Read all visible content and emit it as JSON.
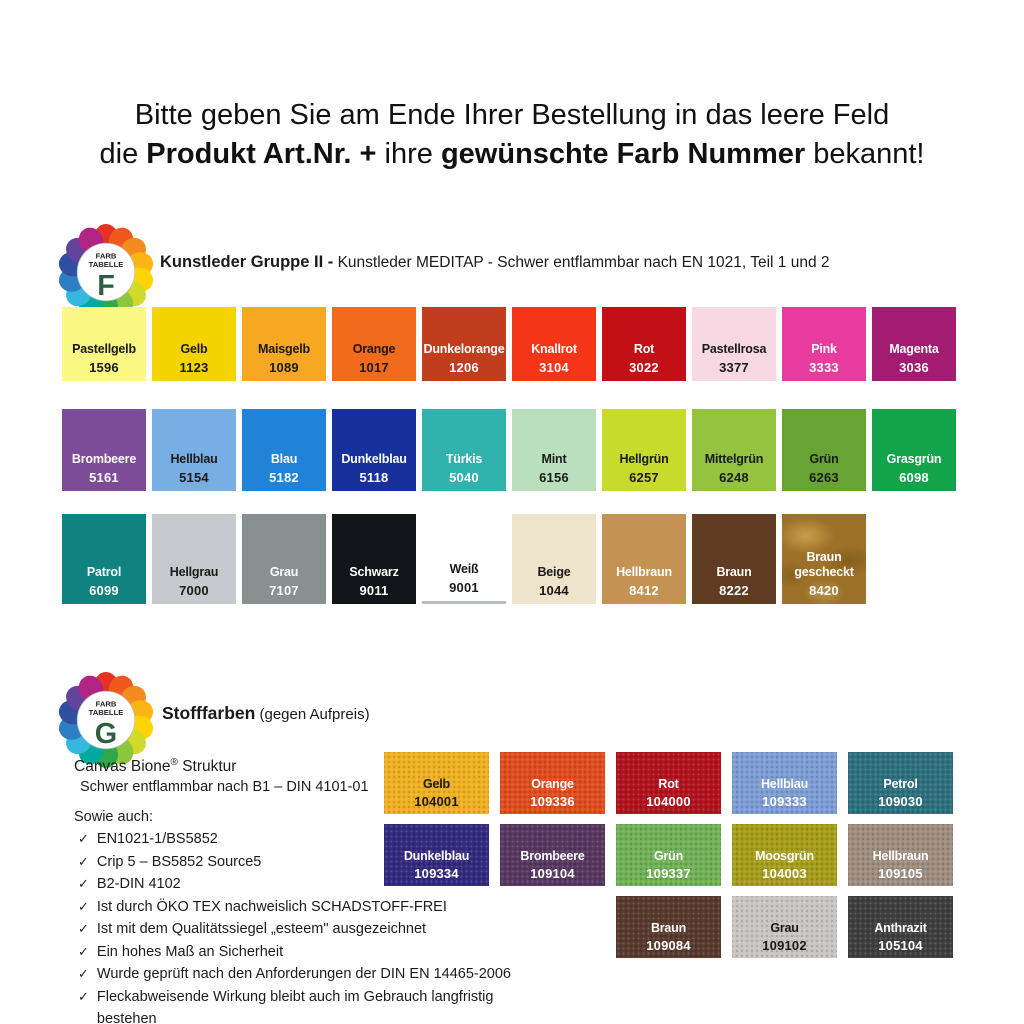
{
  "header": {
    "line1": "Bitte geben Sie am Ende Ihrer Bestellung in das leere Feld",
    "line2_prefix": "die ",
    "line2_bold1": "Produkt Art.Nr. +",
    "line2_mid": " ihre ",
    "line2_bold2": "gewünschte Farb Nummer",
    "line2_suffix": " bekannt!"
  },
  "logo_petal_colors": [
    "#e63223",
    "#f0581f",
    "#f58b1f",
    "#fbb616",
    "#ffd400",
    "#cfdb28",
    "#8cc63e",
    "#2fa84b",
    "#00a99d",
    "#35b8e0",
    "#2e7ec6",
    "#2f4fa2",
    "#63439b",
    "#b02483"
  ],
  "logo_letter_color": "#2d5f3e",
  "section_f": {
    "logo": {
      "line1": "FARB",
      "line2": "TABELLE",
      "letter": "F"
    },
    "title_bold": "Kunstleder Gruppe II -",
    "title_rest": " Kunstleder MEDITAP - Schwer entflammbar nach EN 1021, Teil 1 und 2",
    "rows": [
      {
        "cells": [
          {
            "name": "Pastellgelb",
            "code": "1596",
            "bg": "#faf782",
            "fg": "#1a1a1a"
          },
          {
            "name": "Gelb",
            "code": "1123",
            "bg": "#f4d400",
            "fg": "#1a1a1a"
          },
          {
            "name": "Maisgelb",
            "code": "1089",
            "bg": "#f7a823",
            "fg": "#1a1a1a"
          },
          {
            "name": "Orange",
            "code": "1017",
            "bg": "#f26a1b",
            "fg": "#1a1a1a"
          },
          {
            "name": "Dunkelorange",
            "code": "1206",
            "bg": "#c23c1e",
            "fg": "#ffffff"
          },
          {
            "name": "Knallrot",
            "code": "3104",
            "bg": "#f53517",
            "fg": "#ffffff"
          },
          {
            "name": "Rot",
            "code": "3022",
            "bg": "#c31017",
            "fg": "#ffffff"
          },
          {
            "name": "Pastellrosa",
            "code": "3377",
            "bg": "#f8d8e2",
            "fg": "#1a1a1a"
          },
          {
            "name": "Pink",
            "code": "3333",
            "bg": "#e73c9e",
            "fg": "#ffffff"
          },
          {
            "name": "Magenta",
            "code": "3036",
            "bg": "#a21d72",
            "fg": "#ffffff"
          }
        ]
      },
      {
        "cells": [
          {
            "name": "Brombeere",
            "code": "5161",
            "bg": "#7d4c98",
            "fg": "#ffffff"
          },
          {
            "name": "Hellblau",
            "code": "5154",
            "bg": "#77aee3",
            "fg": "#1a1a1a"
          },
          {
            "name": "Blau",
            "code": "5182",
            "bg": "#2083d7",
            "fg": "#ffffff"
          },
          {
            "name": "Dunkelblau",
            "code": "5118",
            "bg": "#17309b",
            "fg": "#ffffff"
          },
          {
            "name": "Türkis",
            "code": "5040",
            "bg": "#32b2ad",
            "fg": "#ffffff"
          },
          {
            "name": "Mint",
            "code": "6156",
            "bg": "#badfbd",
            "fg": "#1a1a1a"
          },
          {
            "name": "Hellgrün",
            "code": "6257",
            "bg": "#c6db2b",
            "fg": "#1a1a1a"
          },
          {
            "name": "Mittelgrün",
            "code": "6248",
            "bg": "#93c33f",
            "fg": "#1a1a1a"
          },
          {
            "name": "Grün",
            "code": "6263",
            "bg": "#67a433",
            "fg": "#1a1a1a"
          },
          {
            "name": "Grasgrün",
            "code": "6098",
            "bg": "#12a34b",
            "fg": "#ffffff"
          }
        ]
      },
      {
        "cells": [
          {
            "name": "Patrol",
            "code": "6099",
            "bg": "#108280",
            "fg": "#ffffff"
          },
          {
            "name": "Hellgrau",
            "code": "7000",
            "bg": "#c6cace",
            "fg": "#1a1a1a"
          },
          {
            "name": "Grau",
            "code": "7107",
            "bg": "#889090",
            "fg": "#ffffff"
          },
          {
            "name": "Schwarz",
            "code": "9011",
            "bg": "#111418",
            "fg": "#ffffff"
          },
          {
            "name": "Weiß",
            "code": "9001",
            "bg": "#ffffff",
            "fg": "#1a1a1a",
            "underline": true
          },
          {
            "name": "Beige",
            "code": "1044",
            "bg": "#eee3cb",
            "fg": "#1a1a1a"
          },
          {
            "name": "Hellbraun",
            "code": "8412",
            "bg": "#c49353",
            "fg": "#ffffff"
          },
          {
            "name": "Braun",
            "code": "8222",
            "bg": "#5e3b21",
            "fg": "#ffffff"
          },
          {
            "name": "Braun gescheckt",
            "code": "8420",
            "bg": "#9c7129",
            "fg": "#ffffff",
            "mottled": true
          }
        ]
      }
    ]
  },
  "section_g": {
    "logo": {
      "line1": "FARB",
      "line2": "TABELLE",
      "letter": "G"
    },
    "title_bold": "Stofffarben",
    "title_rest": " (gegen Aufpreis)",
    "info": {
      "heading_pre": "Canvas Bione",
      "heading_sup": "®",
      "heading_post": " Struktur",
      "subheading": "Schwer entflammbar nach B1 – DIN 4101-01",
      "list_intro": "Sowie auch:",
      "checkmark": "✓",
      "items": [
        "EN1021-1/BS5852",
        "Crip 5 – BS5852 Source5",
        "B2-DIN 4102",
        "Ist durch ÖKO TEX nachweislich SCHADSTOFF-FREI",
        "Ist mit dem Qualitätssiegel „esteem\" ausgezeichnet",
        "Ein hohes Maß an Sicherheit",
        "Wurde geprüft nach den Anforderungen der DIN EN 14465-2006",
        "Fleckabweisende Wirkung bleibt auch im Gebrauch langfristig bestehen"
      ]
    },
    "rows": [
      {
        "cells": [
          {
            "name": "Gelb",
            "code": "104001",
            "bg": "#efb022",
            "fg": "#1a1a1a"
          },
          {
            "name": "Orange",
            "code": "109336",
            "bg": "#e04d1f",
            "fg": "#ffffff"
          },
          {
            "name": "Rot",
            "code": "104000",
            "bg": "#b2141f",
            "fg": "#ffffff"
          },
          {
            "name": "Hellblau",
            "code": "109333",
            "bg": "#7e9dd3",
            "fg": "#ffffff"
          },
          {
            "name": "Petrol",
            "code": "109030",
            "bg": "#2f707e",
            "fg": "#ffffff"
          }
        ]
      },
      {
        "cells": [
          {
            "name": "Dunkelblau",
            "code": "109334",
            "bg": "#332b7e",
            "fg": "#ffffff"
          },
          {
            "name": "Brombeere",
            "code": "109104",
            "bg": "#573860",
            "fg": "#ffffff"
          },
          {
            "name": "Grün",
            "code": "109337",
            "bg": "#70b158",
            "fg": "#ffffff"
          },
          {
            "name": "Moosgrün",
            "code": "104003",
            "bg": "#a69d1b",
            "fg": "#ffffff"
          },
          {
            "name": "Hellbraun",
            "code": "109105",
            "bg": "#9e8e7f",
            "fg": "#ffffff"
          }
        ]
      },
      {
        "offset": 2,
        "cells": [
          {
            "name": "Braun",
            "code": "109084",
            "bg": "#583a2e",
            "fg": "#ffffff"
          },
          {
            "name": "Grau",
            "code": "109102",
            "bg": "#c7c6c2",
            "fg": "#1a1a1a"
          },
          {
            "name": "Anthrazit",
            "code": "105104",
            "bg": "#3f3f3f",
            "fg": "#ffffff"
          }
        ]
      }
    ]
  }
}
